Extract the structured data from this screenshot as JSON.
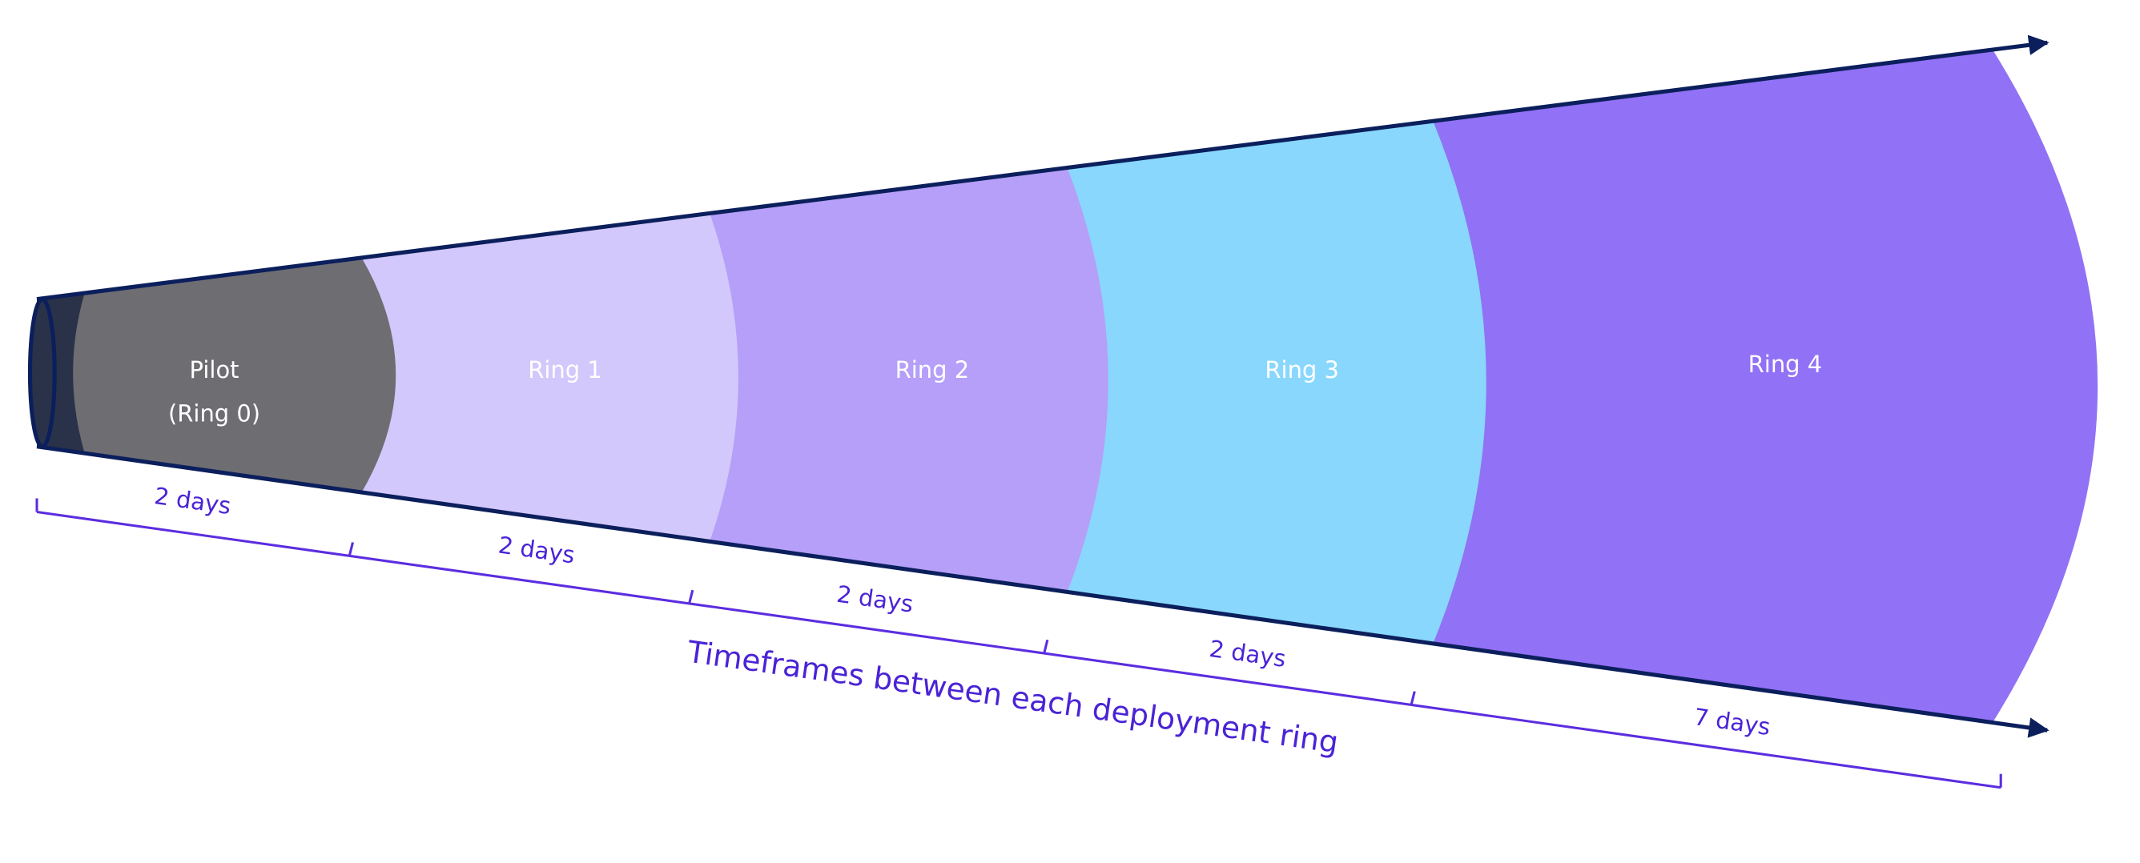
{
  "rings": [
    {
      "label": "Pilot",
      "sublabel": "(Ring 0)"
    },
    {
      "label": "Ring 1"
    },
    {
      "label": "Ring 2"
    },
    {
      "label": "Ring 3"
    },
    {
      "label": "Ring 4"
    }
  ],
  "timeframes": [
    "2 days",
    "2 days",
    "2 days",
    "2 days",
    "7 days"
  ],
  "caption": "Timeframes between each deployment ring"
}
